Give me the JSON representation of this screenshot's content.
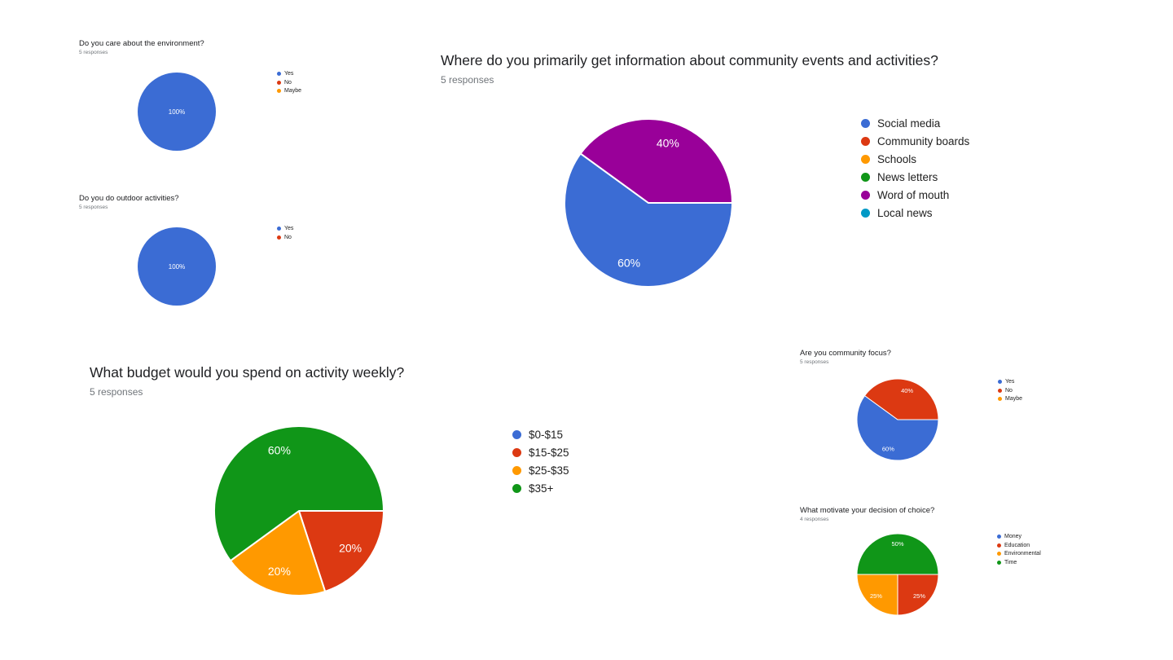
{
  "palette": {
    "blue": "#3b6cd4",
    "red": "#dc3912",
    "orange": "#ff9900",
    "green": "#109618",
    "purple": "#990099",
    "cyan": "#0099c6"
  },
  "chart_data": [
    {
      "type": "pie",
      "title": "Do you care about the environment?",
      "subtitle": "5 responses",
      "legend_position": "right",
      "items": [
        {
          "label": "Yes",
          "color": "blue",
          "pct": 100,
          "shown_label": "100%"
        },
        {
          "label": "No",
          "color": "red",
          "pct": 0
        },
        {
          "label": "Maybe",
          "color": "orange",
          "pct": 0
        }
      ]
    },
    {
      "type": "pie",
      "title": "Do you do outdoor activities?",
      "subtitle": "5 responses",
      "legend_position": "right",
      "items": [
        {
          "label": "Yes",
          "color": "blue",
          "pct": 100,
          "shown_label": "100%"
        },
        {
          "label": "No",
          "color": "red",
          "pct": 0
        }
      ]
    },
    {
      "type": "pie",
      "title": "Where do you primarily get information about community events and activities?",
      "subtitle": "5 responses",
      "legend_position": "right",
      "items": [
        {
          "label": "Social media",
          "color": "blue",
          "pct": 60,
          "shown_label": "60%"
        },
        {
          "label": "Community boards",
          "color": "red",
          "pct": 0
        },
        {
          "label": "Schools",
          "color": "orange",
          "pct": 0
        },
        {
          "label": "News letters",
          "color": "green",
          "pct": 0
        },
        {
          "label": "Word of mouth",
          "color": "purple",
          "pct": 40,
          "shown_label": "40%"
        },
        {
          "label": "Local news",
          "color": "cyan",
          "pct": 0
        }
      ]
    },
    {
      "type": "pie",
      "title": "What budget would you spend on activity weekly?",
      "subtitle": "5 responses",
      "legend_position": "right",
      "items": [
        {
          "label": "$0-$15",
          "color": "blue",
          "pct": 0
        },
        {
          "label": "$15-$25",
          "color": "red",
          "pct": 20,
          "shown_label": "20%"
        },
        {
          "label": "$25-$35",
          "color": "orange",
          "pct": 20,
          "shown_label": "20%"
        },
        {
          "label": "$35+",
          "color": "green",
          "pct": 60,
          "shown_label": "60%"
        }
      ]
    },
    {
      "type": "pie",
      "title": "Are you community focus?",
      "subtitle": "5 responses",
      "legend_position": "right",
      "items": [
        {
          "label": "Yes",
          "color": "blue",
          "pct": 60,
          "shown_label": "60%"
        },
        {
          "label": "No",
          "color": "red",
          "pct": 40,
          "shown_label": "40%"
        },
        {
          "label": "Maybe",
          "color": "orange",
          "pct": 0
        }
      ]
    },
    {
      "type": "pie",
      "title": "What motivate your decision of choice?",
      "subtitle": "4 responses",
      "legend_position": "right",
      "items": [
        {
          "label": "Money",
          "color": "blue",
          "pct": 0
        },
        {
          "label": "Education",
          "color": "red",
          "pct": 25,
          "shown_label": "25%"
        },
        {
          "label": "Environmental",
          "color": "orange",
          "pct": 25,
          "shown_label": "25%"
        },
        {
          "label": "Time",
          "color": "green",
          "pct": 50,
          "shown_label": "50%"
        }
      ]
    }
  ]
}
